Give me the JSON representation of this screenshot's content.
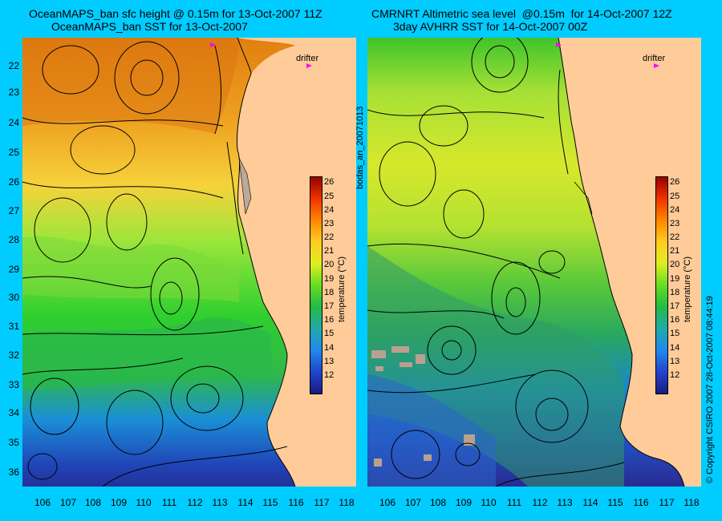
{
  "left_panel": {
    "title_line1": "OceanMAPS_ban sfc height @ 0.15m for 13-Oct-2007 11Z",
    "title_line2": "OceanMAPS_ban SST for 13-Oct-2007",
    "drifter_label": "drifter"
  },
  "right_panel": {
    "title_line1": "CMRNRT Altimetric sea level  @0.15m  for 14-Oct-2007 12Z",
    "title_line2": "3day AVHRR SST for 14-Oct-2007 00Z",
    "drifter_label": "drifter"
  },
  "latitude_labels": [
    "22",
    "23",
    "24",
    "25",
    "26",
    "27",
    "28",
    "29",
    "30",
    "31",
    "32",
    "33",
    "34",
    "35",
    "36"
  ],
  "longitude_labels": [
    "106",
    "107",
    "108",
    "109",
    "110",
    "111",
    "112",
    "113",
    "114",
    "115",
    "116",
    "117",
    "118"
  ],
  "colorbar": {
    "title": "temperature (°C)",
    "ticks": [
      "26",
      "25",
      "24",
      "23",
      "22",
      "21",
      "20",
      "19",
      "18",
      "17",
      "16",
      "15",
      "14",
      "13",
      "12"
    ],
    "min": 11.5,
    "max": 26.5
  },
  "side_text": {
    "analysis_tag": "bodas_an_20071013",
    "copyright": "© Copyright CSIRO 2007   28-Oct-2007 08:44:19"
  },
  "colors": {
    "background": "#00ccff",
    "land": "#ffcc99"
  }
}
